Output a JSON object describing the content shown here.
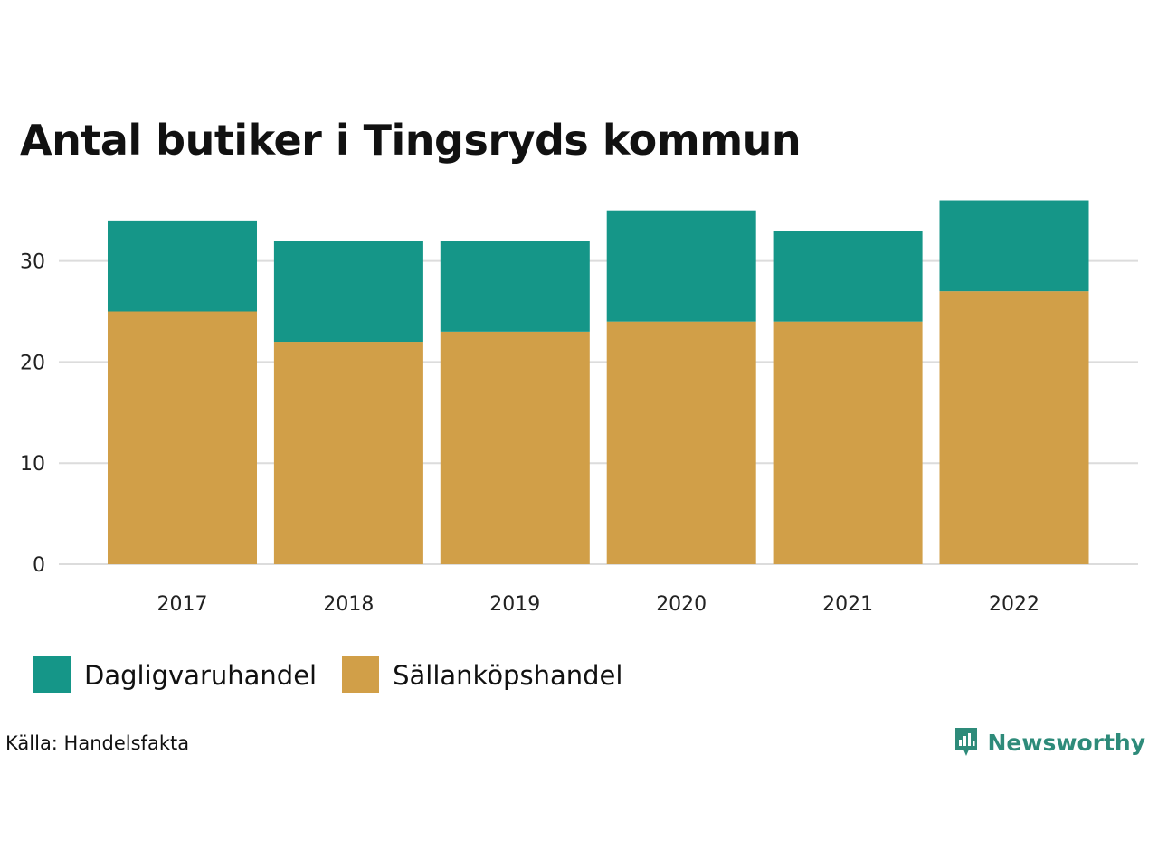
{
  "chart_data": {
    "type": "bar",
    "stacked": true,
    "title": "Antal butiker i Tingsryds kommun",
    "categories": [
      "2017",
      "2018",
      "2019",
      "2020",
      "2021",
      "2022"
    ],
    "series": [
      {
        "name": "Sällanköpshandel",
        "color": "#D19F48",
        "values": [
          25,
          22,
          23,
          24,
          24,
          27
        ]
      },
      {
        "name": "Dagligvaruhandel",
        "color": "#159688",
        "values": [
          9,
          10,
          9,
          11,
          9,
          9
        ]
      }
    ],
    "yticks": [
      "0",
      "10",
      "20",
      "30"
    ],
    "ylim": [
      0,
      36
    ],
    "xlabel": "",
    "ylabel": "",
    "grid": true,
    "legend_position": "bottom-left"
  },
  "legend": [
    {
      "label": "Dagligvaruhandel",
      "color": "#159688"
    },
    {
      "label": "Sällanköpshandel",
      "color": "#D19F48"
    }
  ],
  "footer": {
    "source": "Källa: Handelsfakta",
    "brand": "Newsworthy",
    "brand_color": "#2E8B7A",
    "logo_icon": "newsworthy-logo-icon"
  }
}
